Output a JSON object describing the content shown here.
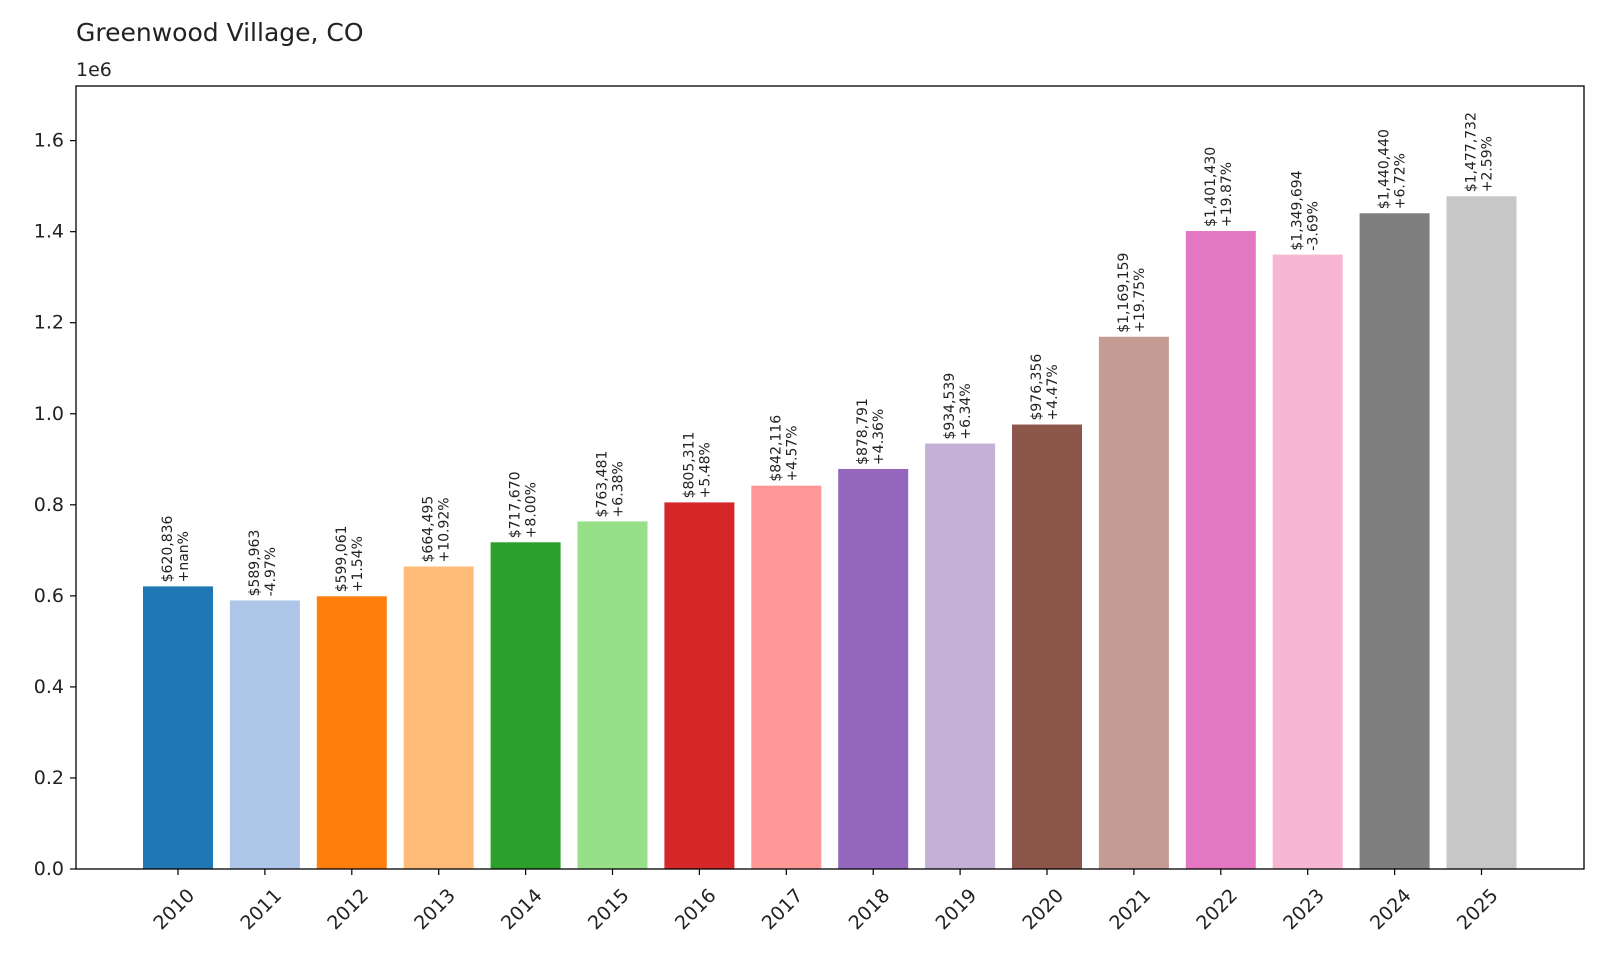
{
  "chart_data": {
    "type": "bar",
    "title": "Greenwood Village, CO",
    "xlabel": "",
    "ylabel": "",
    "y_offset_label": "1e6",
    "ylim": [
      0,
      1.72
    ],
    "y_ticks": [
      "0.0",
      "0.2",
      "0.4",
      "0.6",
      "0.8",
      "1.0",
      "1.2",
      "1.4",
      "1.6"
    ],
    "grid": false,
    "categories": [
      "2010",
      "2011",
      "2012",
      "2013",
      "2014",
      "2015",
      "2016",
      "2017",
      "2018",
      "2019",
      "2020",
      "2021",
      "2022",
      "2023",
      "2024",
      "2025"
    ],
    "values": [
      620836,
      589963,
      599061,
      664495,
      717670,
      763481,
      805311,
      842116,
      878791,
      934539,
      976356,
      1169159,
      1401430,
      1349694,
      1440440,
      1477732
    ],
    "value_labels": [
      "$620,836",
      "$589,963",
      "$599,061",
      "$664,495",
      "$717,670",
      "$763,481",
      "$805,311",
      "$842,116",
      "$878,791",
      "$934,539",
      "$976,356",
      "$1,169,159",
      "$1,401,430",
      "$1,349,694",
      "$1,440,440",
      "$1,477,732"
    ],
    "change_labels": [
      "+nan%",
      "-4.97%",
      "+1.54%",
      "+10.92%",
      "+8.00%",
      "+6.38%",
      "+5.48%",
      "+4.57%",
      "+4.36%",
      "+6.34%",
      "+4.47%",
      "+19.75%",
      "+19.87%",
      "-3.69%",
      "+6.72%",
      "+2.59%"
    ],
    "colors": [
      "#1f77b4",
      "#aec7e8",
      "#ff7f0e",
      "#ffbb78",
      "#2ca02c",
      "#98df8a",
      "#d62728",
      "#ff9896",
      "#9467bd",
      "#c5b0d5",
      "#8c564b",
      "#c49c94",
      "#e377c2",
      "#f7b6d2",
      "#7f7f7f",
      "#c7c7c7"
    ]
  }
}
